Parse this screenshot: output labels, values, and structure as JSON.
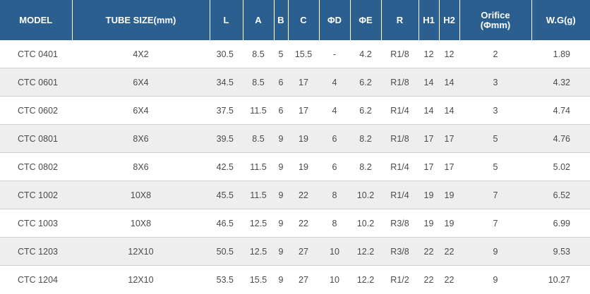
{
  "table": {
    "headers": {
      "model": "MODEL",
      "tube_size": "TUBE SIZE(mm)",
      "l": "L",
      "a": "A",
      "b": "B",
      "c": "C",
      "d": "ΦD",
      "e": "ΦE",
      "r": "R",
      "h1": "H1",
      "h2": "H2",
      "orifice_line1": "Orifice",
      "orifice_line2": "(Φmm)",
      "wg": "W.G(g)"
    },
    "rows": [
      {
        "model": "CTC 0401",
        "tube_size": "4X2",
        "l": "30.5",
        "a": "8.5",
        "b": "5",
        "c": "15.5",
        "d": "-",
        "e": "4.2",
        "r": "R1/8",
        "h1": "12",
        "h2": "12",
        "orifice": "2",
        "wg": "1.89"
      },
      {
        "model": "CTC 0601",
        "tube_size": "6X4",
        "l": "34.5",
        "a": "8.5",
        "b": "6",
        "c": "17",
        "d": "4",
        "e": "6.2",
        "r": "R1/8",
        "h1": "14",
        "h2": "14",
        "orifice": "3",
        "wg": "4.32"
      },
      {
        "model": "CTC 0602",
        "tube_size": "6X4",
        "l": "37.5",
        "a": "11.5",
        "b": "6",
        "c": "17",
        "d": "4",
        "e": "6.2",
        "r": "R1/4",
        "h1": "14",
        "h2": "14",
        "orifice": "3",
        "wg": "4.74"
      },
      {
        "model": "CTC 0801",
        "tube_size": "8X6",
        "l": "39.5",
        "a": "8.5",
        "b": "9",
        "c": "19",
        "d": "6",
        "e": "8.2",
        "r": "R1/8",
        "h1": "17",
        "h2": "17",
        "orifice": "5",
        "wg": "4.76"
      },
      {
        "model": "CTC 0802",
        "tube_size": "8X6",
        "l": "42.5",
        "a": "11.5",
        "b": "9",
        "c": "19",
        "d": "6",
        "e": "8.2",
        "r": "R1/4",
        "h1": "17",
        "h2": "17",
        "orifice": "5",
        "wg": "5.02"
      },
      {
        "model": "CTC 1002",
        "tube_size": "10X8",
        "l": "45.5",
        "a": "11.5",
        "b": "9",
        "c": "22",
        "d": "8",
        "e": "10.2",
        "r": "R1/4",
        "h1": "19",
        "h2": "19",
        "orifice": "7",
        "wg": "6.52"
      },
      {
        "model": "CTC 1003",
        "tube_size": "10X8",
        "l": "46.5",
        "a": "12.5",
        "b": "9",
        "c": "22",
        "d": "8",
        "e": "10.2",
        "r": "R3/8",
        "h1": "19",
        "h2": "19",
        "orifice": "7",
        "wg": "6.99"
      },
      {
        "model": "CTC 1203",
        "tube_size": "12X10",
        "l": "50.5",
        "a": "12.5",
        "b": "9",
        "c": "27",
        "d": "10",
        "e": "12.2",
        "r": "R3/8",
        "h1": "22",
        "h2": "22",
        "orifice": "9",
        "wg": "9.53"
      },
      {
        "model": "CTC 1204",
        "tube_size": "12X10",
        "l": "53.5",
        "a": "15.5",
        "b": "9",
        "c": "27",
        "d": "10",
        "e": "12.2",
        "r": "R1/2",
        "h1": "22",
        "h2": "22",
        "orifice": "9",
        "wg": "10.27"
      }
    ]
  }
}
